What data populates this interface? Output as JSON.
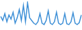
{
  "chart_data": {
    "type": "line",
    "categories": [
      null,
      null,
      null,
      null,
      null,
      null,
      null,
      null,
      null,
      null,
      null,
      null,
      null,
      null,
      null,
      null,
      null,
      null,
      null,
      null,
      null,
      null,
      null,
      null,
      null,
      null,
      null,
      null,
      null,
      null,
      null,
      null,
      null,
      null,
      null,
      null,
      null,
      null,
      null,
      null
    ],
    "values": [
      45,
      30,
      55,
      25,
      50,
      35,
      60,
      20,
      40,
      70,
      30,
      85,
      25,
      95,
      40,
      30,
      20,
      15,
      25,
      55,
      20,
      15,
      30,
      65,
      20,
      15,
      25,
      60,
      20,
      15,
      20,
      55,
      18,
      15,
      25,
      58,
      20,
      15,
      22,
      50
    ],
    "color": "#3d8fd6",
    "ylim": [
      0,
      100
    ],
    "grid": false,
    "tick_labels": false
  }
}
